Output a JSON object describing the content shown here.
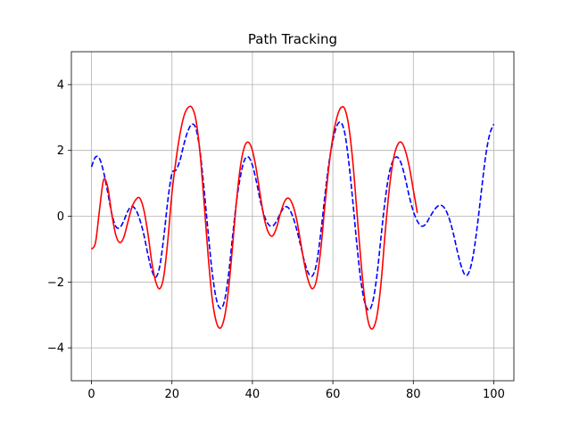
{
  "chart_data": {
    "type": "line",
    "title": "Path Tracking",
    "xlabel": "",
    "ylabel": "",
    "xlim": [
      -5,
      105
    ],
    "ylim": [
      -5,
      5
    ],
    "xticks": [
      0,
      20,
      40,
      60,
      80,
      100
    ],
    "yticks": [
      -4,
      -2,
      0,
      2,
      4
    ],
    "xtick_labels": [
      "0",
      "20",
      "40",
      "60",
      "80",
      "100"
    ],
    "ytick_labels": [
      "−4",
      "−2",
      "0",
      "2",
      "4"
    ],
    "grid": true,
    "legend": "none",
    "series": [
      {
        "style": "dashed",
        "color": "#0000ff",
        "x": [
          0,
          1,
          2,
          3,
          4,
          5,
          6,
          7,
          8,
          9,
          10,
          11,
          12,
          13,
          14,
          15,
          16,
          17,
          18,
          19,
          20,
          21,
          22,
          23,
          24,
          25,
          26,
          27,
          28,
          29,
          30,
          31,
          32,
          33,
          34,
          35,
          36,
          37,
          38,
          39,
          40,
          41,
          42,
          43,
          44,
          45,
          46,
          47,
          48,
          49,
          50,
          51,
          52,
          53,
          54,
          55,
          56,
          57,
          58,
          59,
          60,
          61,
          62,
          63,
          64,
          65,
          66,
          67,
          68,
          69,
          70,
          71,
          72,
          73,
          74,
          75,
          76,
          77,
          78,
          79,
          80,
          81,
          82,
          83,
          84,
          85,
          86,
          87,
          88,
          89,
          90,
          91,
          92,
          93,
          94,
          95,
          96,
          97,
          98,
          99,
          100
        ],
        "y": [
          1.5,
          1.8,
          1.75,
          1.35,
          0.75,
          0.1,
          -0.3,
          -0.35,
          -0.15,
          0.15,
          0.3,
          0.2,
          -0.1,
          -0.55,
          -1.15,
          -1.65,
          -1.85,
          -1.5,
          -0.6,
          0.5,
          1.3,
          1.4,
          1.7,
          2.2,
          2.6,
          2.8,
          2.65,
          1.95,
          0.8,
          -0.5,
          -1.7,
          -2.5,
          -2.8,
          -2.6,
          -1.85,
          -0.7,
          0.4,
          1.2,
          1.7,
          1.8,
          1.55,
          1.05,
          0.45,
          0.0,
          -0.25,
          -0.3,
          -0.15,
          0.1,
          0.28,
          0.25,
          0.0,
          -0.4,
          -0.9,
          -1.4,
          -1.75,
          -1.8,
          -1.4,
          -0.5,
          0.6,
          1.6,
          2.3,
          2.75,
          2.85,
          2.5,
          1.6,
          0.4,
          -0.9,
          -2.0,
          -2.65,
          -2.85,
          -2.55,
          -1.75,
          -0.6,
          0.5,
          1.3,
          1.7,
          1.8,
          1.6,
          1.15,
          0.6,
          0.15,
          -0.15,
          -0.3,
          -0.25,
          -0.05,
          0.15,
          0.3,
          0.33,
          0.2,
          -0.1,
          -0.55,
          -1.1,
          -1.55,
          -1.8,
          -1.65,
          -1.1,
          -0.2,
          0.85,
          1.85,
          2.5,
          2.8
        ]
      },
      {
        "style": "solid",
        "color": "#ff0000",
        "x": [
          0,
          1,
          2,
          3,
          4,
          5,
          6,
          7,
          8,
          9,
          10,
          11,
          12,
          13,
          14,
          15,
          16,
          17,
          18,
          19,
          20,
          21,
          22,
          23,
          24,
          25,
          26,
          27,
          28,
          29,
          30,
          31,
          32,
          33,
          34,
          35,
          36,
          37,
          38,
          39,
          40,
          41,
          42,
          43,
          44,
          45,
          46,
          47,
          48,
          49,
          50,
          51,
          52,
          53,
          54,
          55,
          56,
          57,
          58,
          59,
          60,
          61,
          62,
          63,
          64,
          65,
          66,
          67,
          68,
          69,
          70,
          71,
          72,
          73,
          74,
          75,
          76,
          77,
          78,
          79,
          80,
          81
        ],
        "y": [
          -1.0,
          -0.8,
          0.2,
          1.1,
          0.9,
          0.1,
          -0.55,
          -0.8,
          -0.65,
          -0.2,
          0.25,
          0.5,
          0.55,
          0.2,
          -0.5,
          -1.4,
          -2.0,
          -2.2,
          -1.8,
          -0.7,
          0.7,
          1.7,
          2.5,
          3.05,
          3.3,
          3.3,
          2.9,
          1.9,
          0.4,
          -1.2,
          -2.5,
          -3.2,
          -3.4,
          -3.1,
          -2.3,
          -1.0,
          0.4,
          1.5,
          2.1,
          2.25,
          2.0,
          1.4,
          0.6,
          -0.1,
          -0.5,
          -0.6,
          -0.35,
          0.1,
          0.45,
          0.55,
          0.35,
          -0.1,
          -0.8,
          -1.5,
          -2.0,
          -2.2,
          -1.9,
          -1.0,
          0.3,
          1.5,
          2.4,
          3.0,
          3.3,
          3.25,
          2.7,
          1.6,
          0.1,
          -1.4,
          -2.6,
          -3.3,
          -3.4,
          -3.0,
          -2.0,
          -0.5,
          0.8,
          1.7,
          2.15,
          2.25,
          2.0,
          1.5,
          0.8,
          0.1
        ]
      }
    ]
  }
}
